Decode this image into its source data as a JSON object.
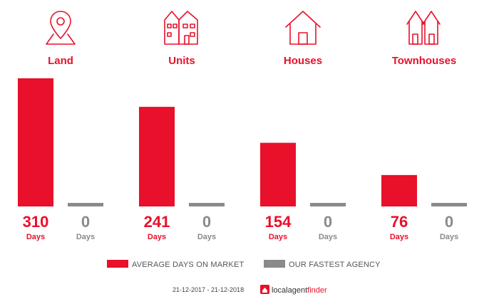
{
  "chart_data": {
    "type": "bar",
    "categories": [
      "Land",
      "Units",
      "Houses",
      "Townhouses"
    ],
    "series": [
      {
        "name": "AVERAGE DAYS ON MARKET",
        "values": [
          310,
          241,
          154,
          76
        ],
        "color": "#e8102a"
      },
      {
        "name": "OUR FASTEST AGENCY",
        "values": [
          0,
          0,
          0,
          0
        ],
        "color": "#8a8a8a"
      }
    ],
    "unit_label": "Days",
    "ylim": [
      0,
      310
    ],
    "grid": false,
    "legend_position": "bottom"
  },
  "icons": [
    "map-pin-icon",
    "units-building-icon",
    "house-icon",
    "townhouses-icon"
  ],
  "footer": {
    "date_range": "21-12-2017 - 21-12-2018",
    "logo_local": "local",
    "logo_agent": "agent",
    "logo_finder": "finder"
  }
}
